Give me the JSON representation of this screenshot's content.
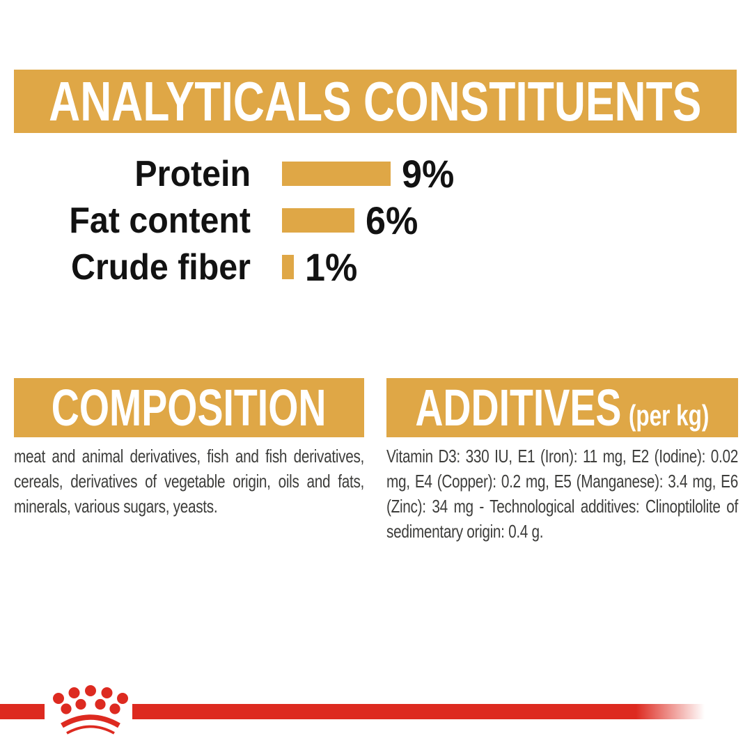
{
  "colors": {
    "gold": "#DFA746",
    "red": "#DD2A20",
    "heading_text": "#FFFFFF",
    "label_text": "#121212",
    "body_text": "#3D3D3B"
  },
  "analyticals": {
    "title": "ANALYTICALS CONSTITUENTS"
  },
  "chart_data": {
    "type": "bar",
    "orientation": "horizontal",
    "title": "ANALYTICALS CONSTITUENTS",
    "categories": [
      "Protein",
      "Fat content",
      "Crude fiber"
    ],
    "values": [
      9,
      6,
      1
    ],
    "value_labels": [
      "9%",
      "6%",
      "1%"
    ],
    "unit": "%",
    "xlim": [
      0,
      9
    ],
    "bar_color": "#DFA746",
    "grid": false,
    "legend": false
  },
  "composition": {
    "title": "COMPOSITION",
    "body": "meat and animal derivatives, fish and fish derivatives, cereals, derivatives of vegetable origin, oils and fats, minerals, various sugars, yeasts."
  },
  "additives": {
    "title": "ADDITIVES",
    "unit": "(per kg)",
    "body": "Vitamin D3: 330 IU, E1 (Iron): 11 mg, E2 (Iodine): 0.02 mg, E4 (Copper): 0.2 mg, E5 (Manganese): 3.4 mg, E6 (Zinc): 34 mg - Technological additives: Clinoptilolite of sedimentary origin: 0.4 g."
  },
  "brand": {
    "logo": "royal-canin-crown"
  }
}
